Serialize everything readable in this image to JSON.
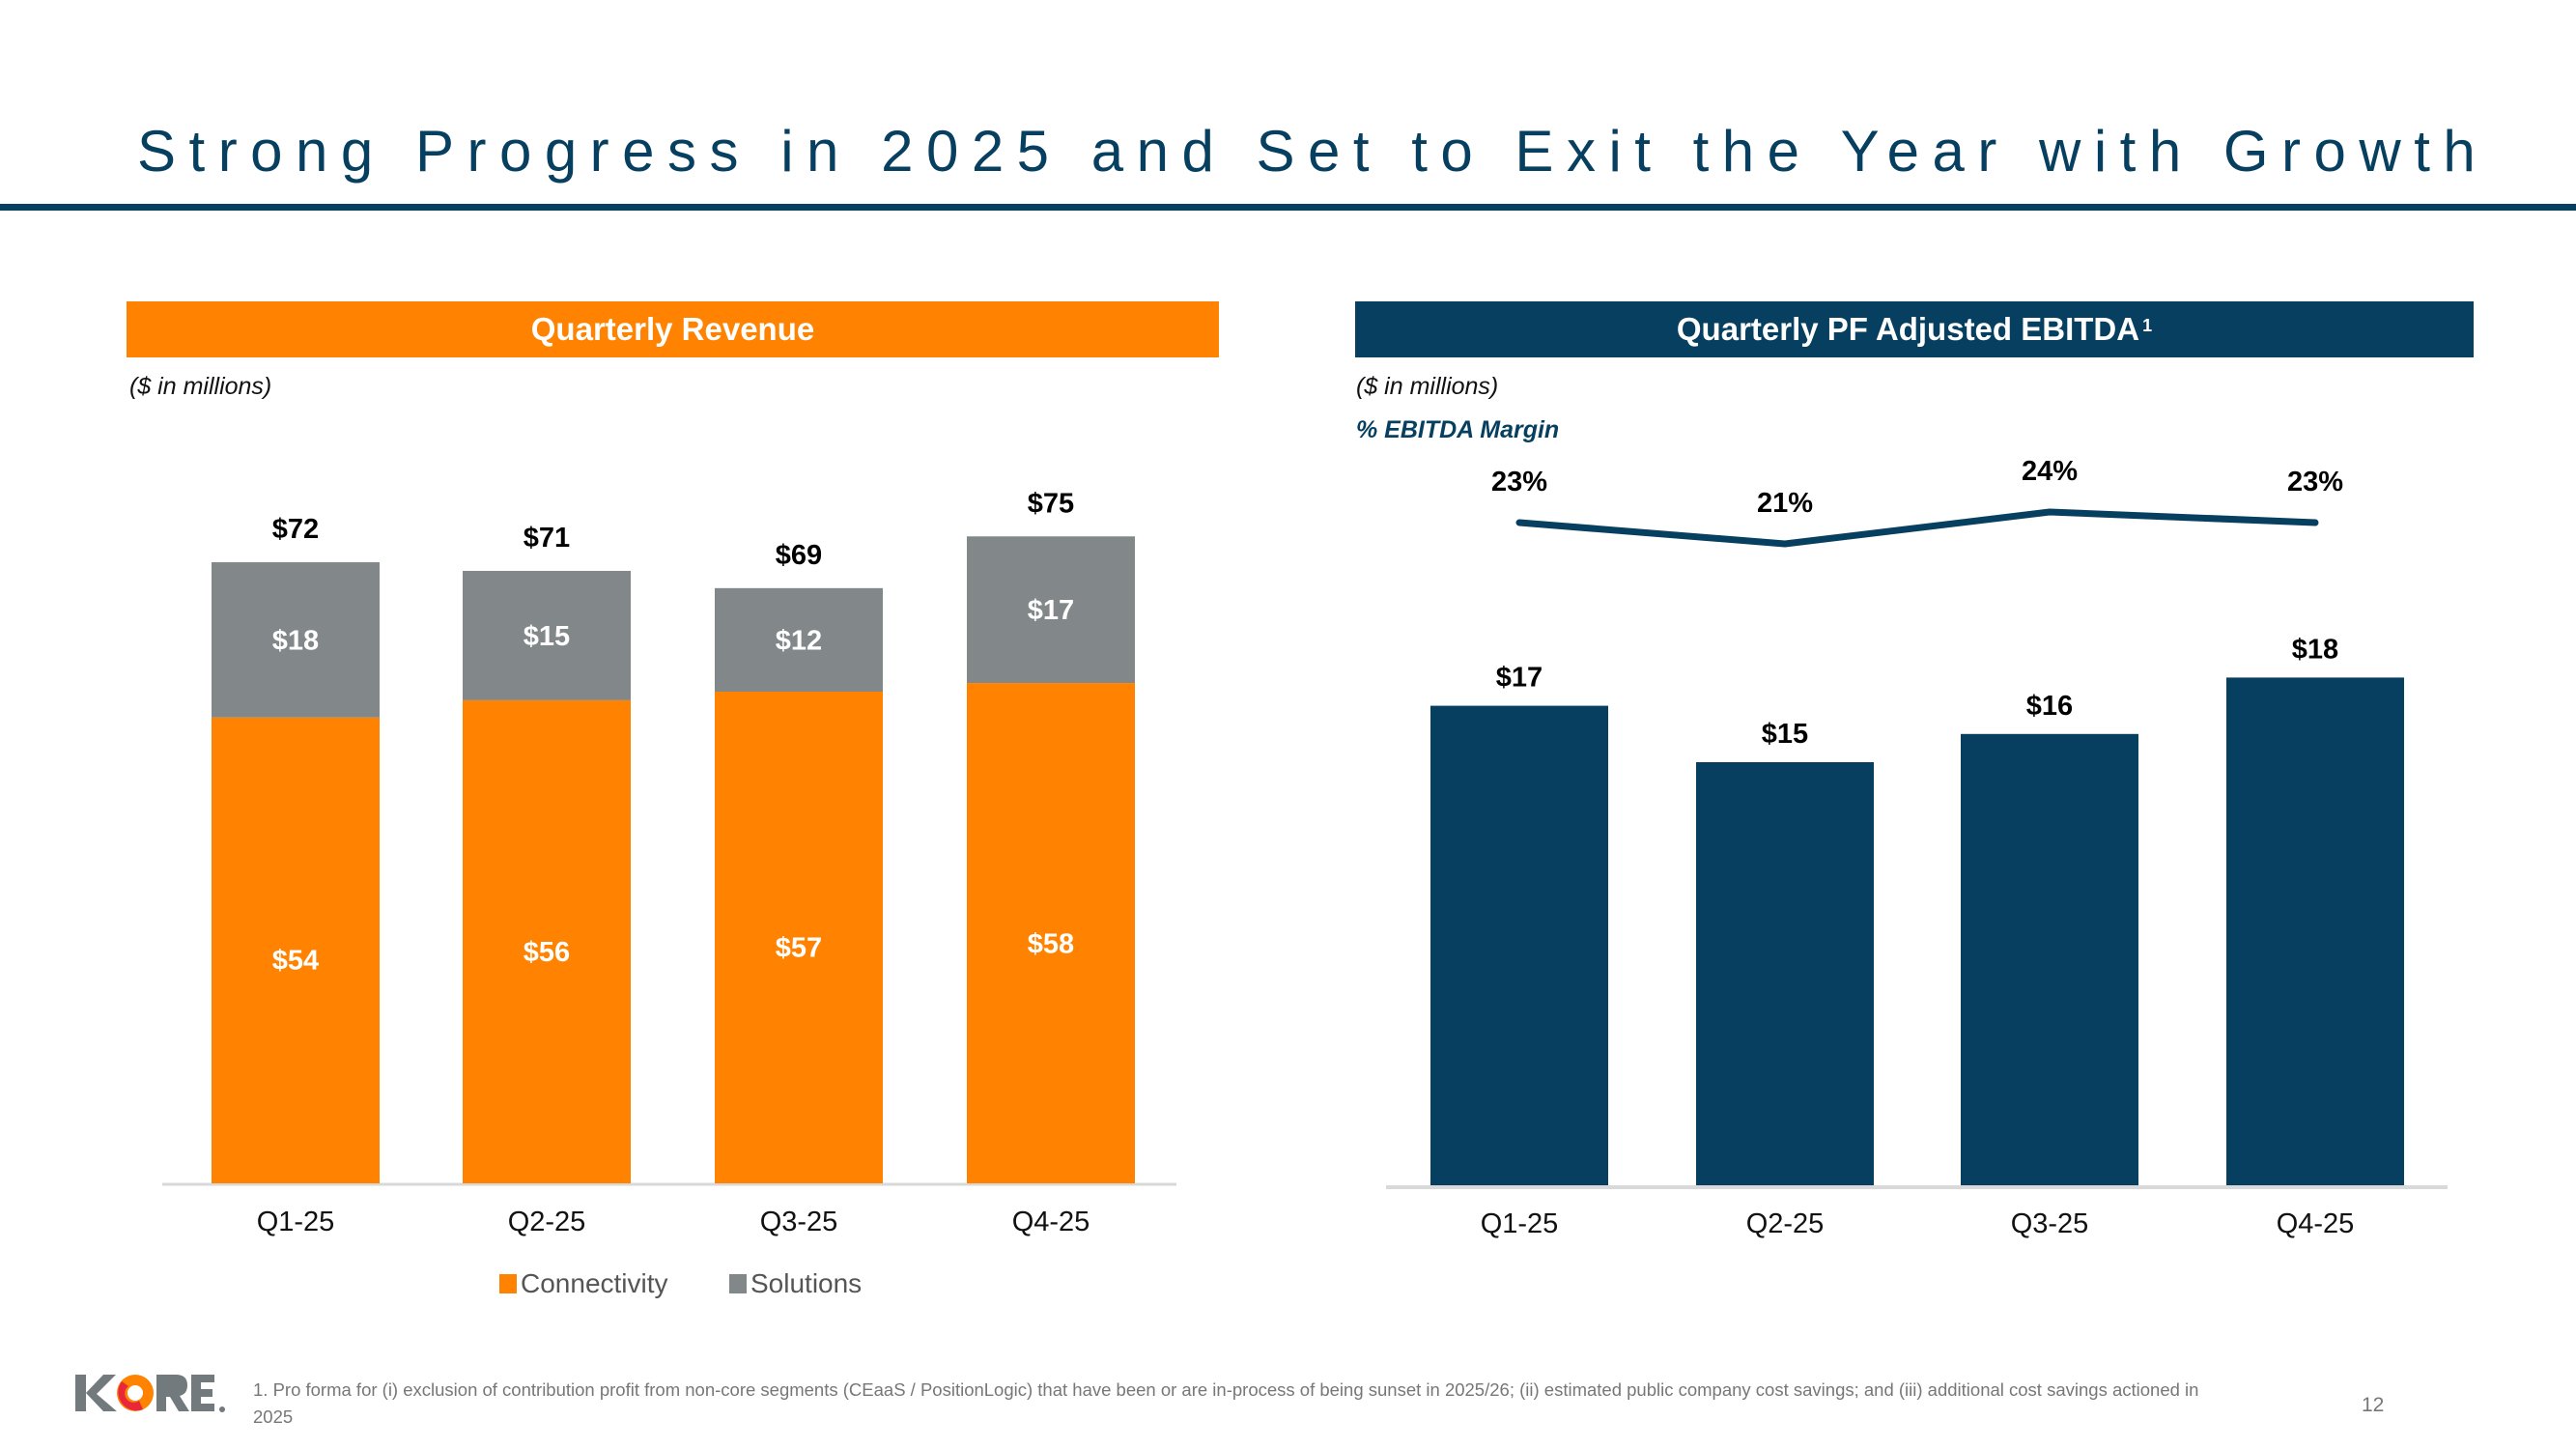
{
  "slide": {
    "title": "Strong Progress in 2025 and Set to Exit the Year with Growth",
    "page_number": "12",
    "logo_text": "KORE",
    "footnote": "1. Pro forma for (i) exclusion of contribution profit from non-core segments (CEaaS / PositionLogic) that have been or are in-process of being sunset in 2025/26; (ii) estimated public company cost savings; and (iii) additional cost savings actioned in 2025",
    "colors": {
      "navy": "#063f5f",
      "orange": "#ff8300",
      "gray": "#82888a",
      "axis": "#d9d9d9"
    }
  },
  "chart_data": [
    {
      "type": "bar",
      "stacked": true,
      "title": "Quarterly Revenue",
      "units_note": "($ in millions)",
      "categories": [
        "Q1-25",
        "Q2-25",
        "Q3-25",
        "Q4-25"
      ],
      "series": [
        {
          "name": "Connectivity",
          "color": "#ff8300",
          "values": [
            54,
            56,
            57,
            58
          ],
          "labels": [
            "$54",
            "$56",
            "$57",
            "$58"
          ]
        },
        {
          "name": "Solutions",
          "color": "#82888a",
          "values": [
            18,
            15,
            12,
            17
          ],
          "labels": [
            "$18",
            "$15",
            "$12",
            "$17"
          ]
        }
      ],
      "totals": [
        72,
        71,
        69,
        75
      ],
      "total_labels": [
        "$72",
        "$71",
        "$69",
        "$75"
      ],
      "xlabel": "",
      "ylabel": "",
      "ylim": [
        0,
        80
      ],
      "grid": false,
      "legend": "bottom"
    },
    {
      "type": "bar",
      "title": "Quarterly PF Adjusted EBITDA",
      "title_superscript": "1",
      "units_note": "($ in millions)",
      "secondary_note": "% EBITDA Margin",
      "categories": [
        "Q1-25",
        "Q2-25",
        "Q3-25",
        "Q4-25"
      ],
      "series": [
        {
          "name": "PF Adjusted EBITDA",
          "type": "bar",
          "color": "#063f5f",
          "values": [
            17,
            15,
            16,
            18
          ],
          "labels": [
            "$17",
            "$15",
            "$16",
            "$18"
          ]
        },
        {
          "name": "% EBITDA Margin",
          "type": "line",
          "color": "#063f5f",
          "values": [
            23,
            21,
            24,
            23
          ],
          "labels": [
            "23%",
            "21%",
            "24%",
            "23%"
          ]
        }
      ],
      "xlabel": "",
      "ylabel": "",
      "ylim": [
        0,
        20
      ],
      "grid": false,
      "legend": "none"
    }
  ]
}
